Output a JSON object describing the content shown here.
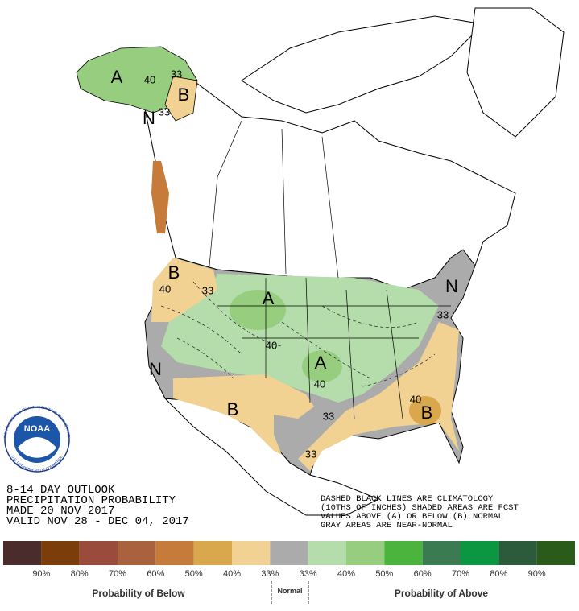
{
  "logo": {
    "name": "NOAA",
    "ring_top": "NATIONAL OCEANIC AND ATMOSPHERIC ADMINISTRATION",
    "ring_bottom": "U.S. DEPARTMENT OF COMMERCE"
  },
  "map_labels": [
    "A",
    "40",
    "33",
    "B",
    "N",
    "33",
    "B",
    "40",
    "33",
    "A",
    "40",
    "A",
    "40",
    "N",
    "B",
    "33",
    "40",
    "B",
    "33",
    "N",
    "33"
  ],
  "outlook": {
    "lines": [
      "8-14 DAY OUTLOOK",
      "PRECIPITATION PROBABILITY",
      "MADE  20 NOV 2017",
      "VALID  NOV 28 - DEC 04, 2017"
    ]
  },
  "notes": {
    "lines": [
      "DASHED BLACK LINES ARE CLIMATOLOGY",
      "(10THS OF INCHES) SHADED AREAS ARE FCST",
      "VALUES ABOVE (A) OR BELOW (B) NORMAL",
      "GRAY AREAS ARE NEAR-NORMAL"
    ]
  },
  "legend": {
    "colors": [
      "#4b2c2c",
      "#7b3d0a",
      "#9a4b3b",
      "#a9623d",
      "#c67b3b",
      "#d9a84c",
      "#f1d293",
      "#ababab",
      "#b5ddab",
      "#97cd7f",
      "#4bb43d",
      "#3b7b51",
      "#0b9641",
      "#2b5b3b",
      "#2b5b1b"
    ],
    "labels": [
      "90%",
      "80%",
      "70%",
      "60%",
      "50%",
      "40%",
      "33%",
      "33%",
      "40%",
      "50%",
      "60%",
      "70%",
      "80%",
      "90%"
    ],
    "below_title": "Probability of Below",
    "normal_title": "Normal",
    "above_title": "Probability of Above"
  }
}
